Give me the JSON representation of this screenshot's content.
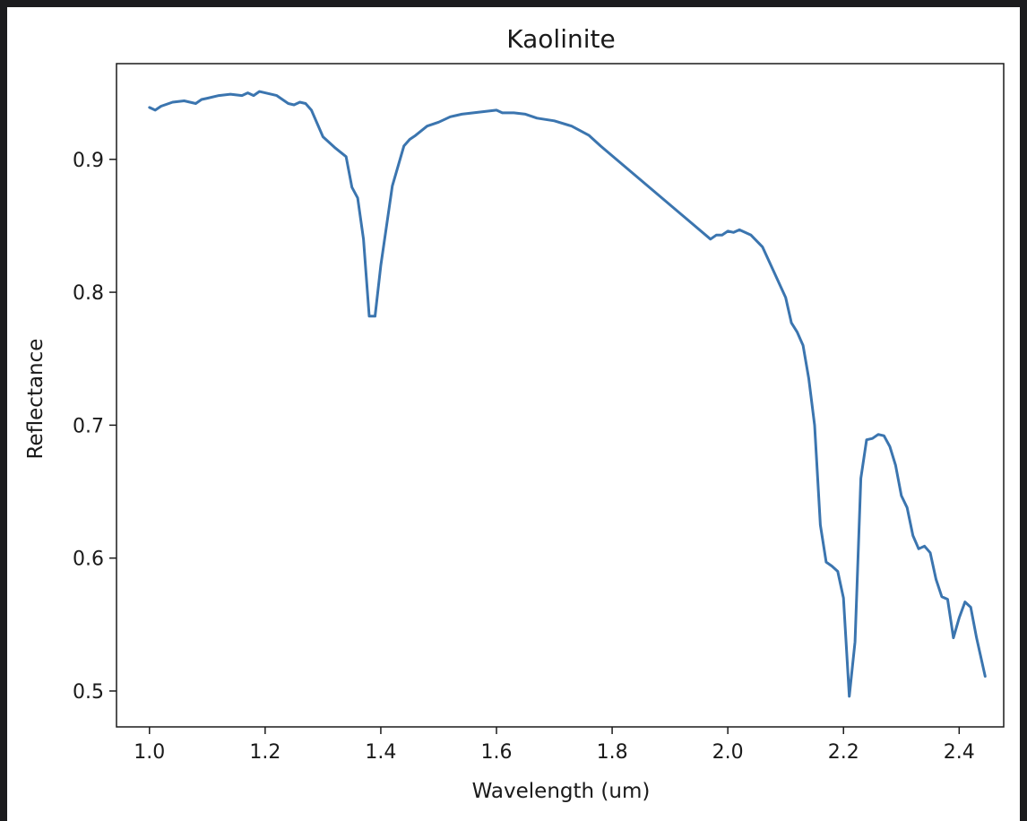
{
  "chart_data": {
    "type": "line",
    "title": "Kaolinite",
    "xlabel": "Wavelength (um)",
    "ylabel": "Reflectance",
    "xlim": [
      0.943,
      2.477
    ],
    "ylim": [
      0.473,
      0.972
    ],
    "xticks": [
      1.0,
      1.2,
      1.4,
      1.6,
      1.8,
      2.0,
      2.2,
      2.4
    ],
    "xtick_labels": [
      "1.0",
      "1.2",
      "1.4",
      "1.6",
      "1.8",
      "2.0",
      "2.2",
      "2.4"
    ],
    "yticks": [
      0.5,
      0.6,
      0.7,
      0.8,
      0.9
    ],
    "ytick_labels": [
      "0.5",
      "0.6",
      "0.7",
      "0.8",
      "0.9"
    ],
    "grid": false,
    "series": [
      {
        "color": "#3b75af",
        "x": [
          1.0,
          1.01,
          1.02,
          1.04,
          1.06,
          1.08,
          1.09,
          1.1,
          1.12,
          1.14,
          1.16,
          1.17,
          1.18,
          1.19,
          1.2,
          1.22,
          1.24,
          1.25,
          1.26,
          1.27,
          1.28,
          1.3,
          1.32,
          1.34,
          1.35,
          1.36,
          1.37,
          1.38,
          1.39,
          1.4,
          1.42,
          1.44,
          1.45,
          1.46,
          1.48,
          1.5,
          1.52,
          1.54,
          1.56,
          1.58,
          1.6,
          1.61,
          1.63,
          1.65,
          1.67,
          1.7,
          1.73,
          1.76,
          1.78,
          1.97,
          1.98,
          1.99,
          2.0,
          2.01,
          2.02,
          2.04,
          2.06,
          2.08,
          2.1,
          2.11,
          2.12,
          2.13,
          2.14,
          2.15,
          2.16,
          2.17,
          2.18,
          2.19,
          2.2,
          2.21,
          2.22,
          2.23,
          2.24,
          2.25,
          2.26,
          2.27,
          2.28,
          2.29,
          2.3,
          2.31,
          2.32,
          2.33,
          2.34,
          2.35,
          2.36,
          2.37,
          2.38,
          2.39,
          2.4,
          2.41,
          2.42,
          2.43,
          2.445
        ],
        "y": [
          0.939,
          0.937,
          0.94,
          0.943,
          0.944,
          0.942,
          0.945,
          0.946,
          0.948,
          0.949,
          0.948,
          0.95,
          0.948,
          0.951,
          0.95,
          0.948,
          0.942,
          0.941,
          0.943,
          0.942,
          0.937,
          0.917,
          0.909,
          0.902,
          0.879,
          0.871,
          0.84,
          0.782,
          0.782,
          0.82,
          0.88,
          0.91,
          0.915,
          0.918,
          0.925,
          0.928,
          0.932,
          0.934,
          0.935,
          0.936,
          0.937,
          0.935,
          0.935,
          0.934,
          0.931,
          0.929,
          0.925,
          0.918,
          0.91,
          0.84,
          0.843,
          0.843,
          0.846,
          0.845,
          0.847,
          0.843,
          0.834,
          0.815,
          0.796,
          0.777,
          0.77,
          0.76,
          0.735,
          0.7,
          0.625,
          0.597,
          0.594,
          0.59,
          0.57,
          0.496,
          0.537,
          0.66,
          0.689,
          0.69,
          0.693,
          0.692,
          0.684,
          0.67,
          0.647,
          0.638,
          0.617,
          0.607,
          0.609,
          0.604,
          0.584,
          0.571,
          0.569,
          0.54,
          0.555,
          0.567,
          0.563,
          0.54,
          0.511
        ]
      }
    ]
  }
}
